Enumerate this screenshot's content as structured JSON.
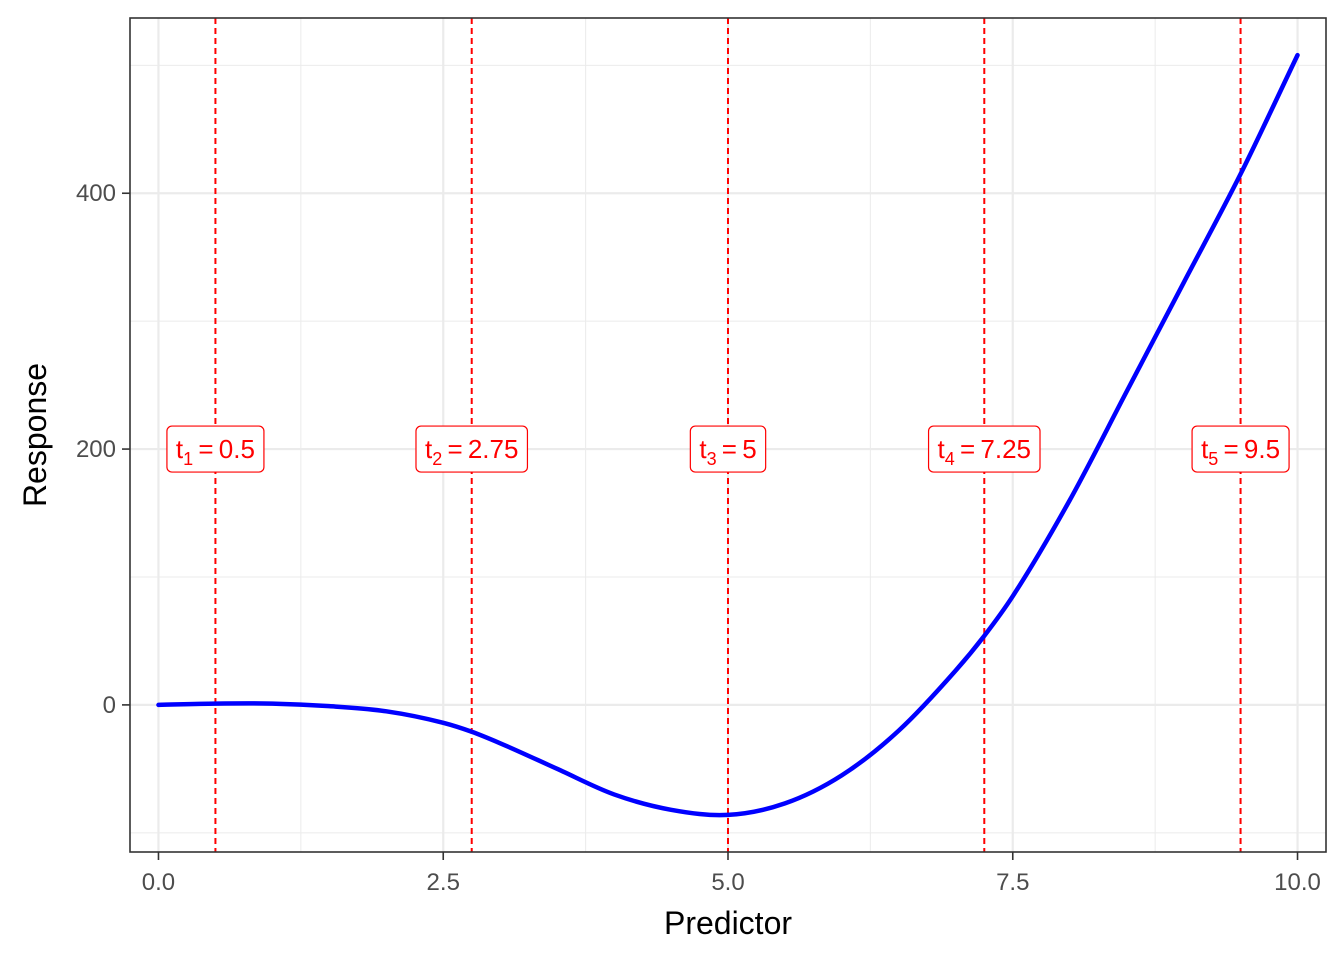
{
  "chart_data": {
    "type": "line",
    "xlabel": "Predictor",
    "ylabel": "Response",
    "xlim": [
      -0.25,
      10.25
    ],
    "ylim": [
      -115,
      537
    ],
    "x_ticks": [
      0,
      2.5,
      5,
      7.5,
      10
    ],
    "x_tick_labels": [
      "0.0",
      "2.5",
      "5.0",
      "7.5",
      "10.0"
    ],
    "y_ticks": [
      0,
      200,
      400
    ],
    "y_tick_labels": [
      "0",
      "200",
      "400"
    ],
    "grid": true,
    "series": [
      {
        "color": "#0000ff",
        "x": [
          0,
          0.5,
          1,
          1.5,
          2,
          2.5,
          2.75,
          3,
          3.5,
          4,
          4.5,
          5,
          5.5,
          6,
          6.5,
          7,
          7.25,
          7.5,
          8,
          8.5,
          9,
          9.5,
          10
        ],
        "y": [
          0,
          1,
          1,
          -1,
          -5,
          -14,
          -21,
          -30,
          -50,
          -70,
          -82,
          -86,
          -77,
          -55,
          -20,
          27,
          54,
          85,
          160,
          245,
          330,
          415,
          508
        ]
      }
    ],
    "knots": {
      "color": "#ff0000",
      "label_y": 200,
      "items": [
        {
          "sub": "1",
          "value": 0.5,
          "value_label": "0.5"
        },
        {
          "sub": "2",
          "value": 2.75,
          "value_label": "2.75"
        },
        {
          "sub": "3",
          "value": 5,
          "value_label": "5"
        },
        {
          "sub": "4",
          "value": 7.25,
          "value_label": "7.25"
        },
        {
          "sub": "5",
          "value": 9.5,
          "value_label": "9.5"
        }
      ]
    }
  }
}
